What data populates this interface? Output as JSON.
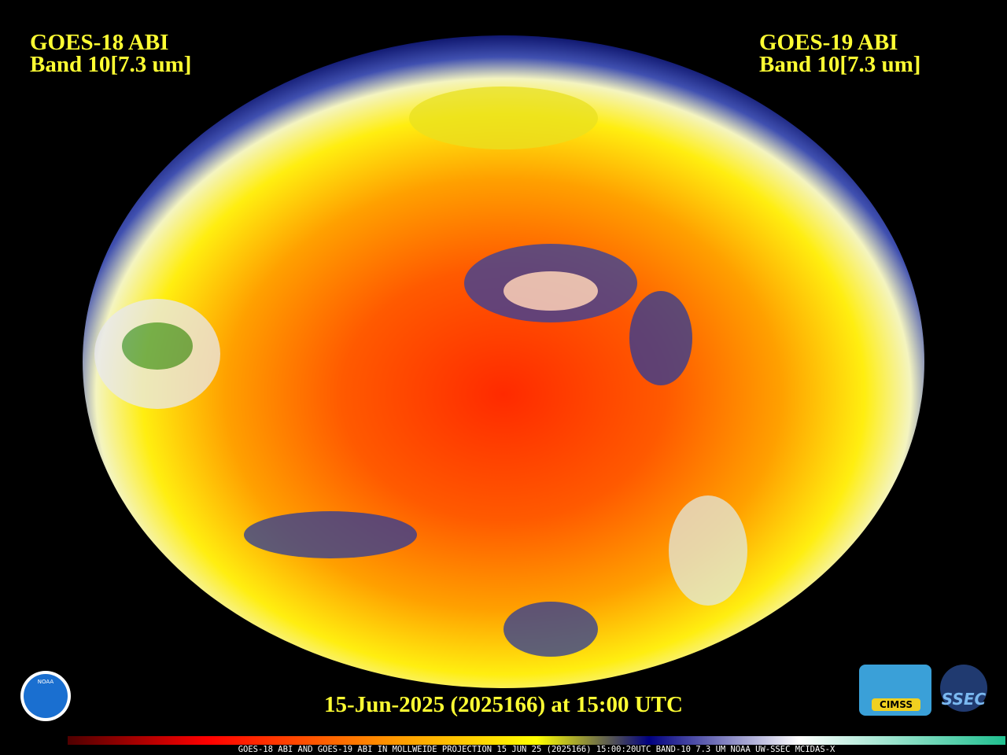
{
  "header": {
    "left": {
      "satellite": "GOES-18 ABI",
      "band": "Band 10[7.3 um]"
    },
    "right": {
      "satellite": "GOES-19 ABI",
      "band": "Band 10[7.3 um]"
    }
  },
  "timestamp": "15-Jun-2025 (2025166) at 15:00 UTC",
  "footer": "GOES-18 ABI AND GOES-19 ABI IN MOLLWEIDE PROJECTION 15 JUN 25 (2025166) 15:00:20UTC BAND-10 7.3 UM NOAA UW-SSEC MCIDAS-X",
  "logos": {
    "noaa": "NOAA",
    "cimss": "CIMSS",
    "ssec": "SSEC"
  }
}
